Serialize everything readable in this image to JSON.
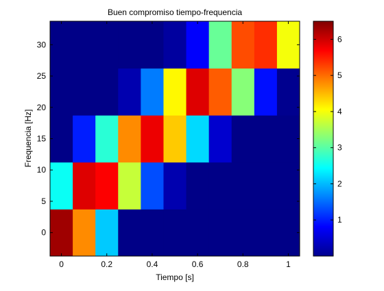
{
  "chart_data": {
    "type": "heatmap",
    "title": "Buen compromiso tiempo-frequencia",
    "xlabel": "Tiempo [s]",
    "ylabel": "Frequencia [Hz]",
    "xlim": [
      -0.05,
      1.05
    ],
    "ylim": [
      -3.75,
      33.75
    ],
    "x_centers": [
      0,
      0.1,
      0.2,
      0.3,
      0.4,
      0.5,
      0.6,
      0.7,
      0.8,
      0.9,
      1.0
    ],
    "y_centers": [
      0,
      7.5,
      15,
      22.5,
      30
    ],
    "cell_width": 0.1,
    "cell_height": 7.5,
    "values": [
      [
        6.3,
        4.8,
        2.1,
        0.05,
        0.05,
        0.05,
        0.05,
        0.05,
        0.05,
        0.05,
        0.05
      ],
      [
        2.5,
        5.9,
        5.7,
        3.7,
        1.3,
        0.3,
        0.05,
        0.05,
        0.05,
        0.05,
        0.05
      ],
      [
        0.05,
        1.0,
        2.7,
        4.8,
        5.8,
        4.4,
        2.2,
        0.5,
        0.05,
        0.05,
        0.05
      ],
      [
        0.05,
        0.05,
        0.05,
        0.3,
        1.6,
        4.1,
        5.9,
        5.1,
        3.3,
        0.9,
        0.1
      ],
      [
        0.05,
        0.05,
        0.05,
        0.05,
        0.05,
        0.2,
        0.8,
        3.1,
        5.2,
        5.4,
        4.0
      ]
    ],
    "color_range": [
      0,
      6.5
    ],
    "colormap": "jet",
    "x_ticks": [
      0,
      0.2,
      0.4,
      0.6,
      0.8,
      1
    ],
    "x_tick_labels": [
      "0",
      "0.2",
      "0.4",
      "0.6",
      "0.8",
      "1"
    ],
    "y_ticks": [
      0,
      5,
      10,
      15,
      20,
      25,
      30
    ],
    "y_tick_labels": [
      "0",
      "5",
      "10",
      "15",
      "20",
      "25",
      "30"
    ],
    "colorbar_ticks": [
      1,
      2,
      3,
      4,
      5,
      6
    ],
    "colorbar_tick_labels": [
      "1",
      "2",
      "3",
      "4",
      "5",
      "6"
    ],
    "grid": false,
    "colorbar": true
  }
}
